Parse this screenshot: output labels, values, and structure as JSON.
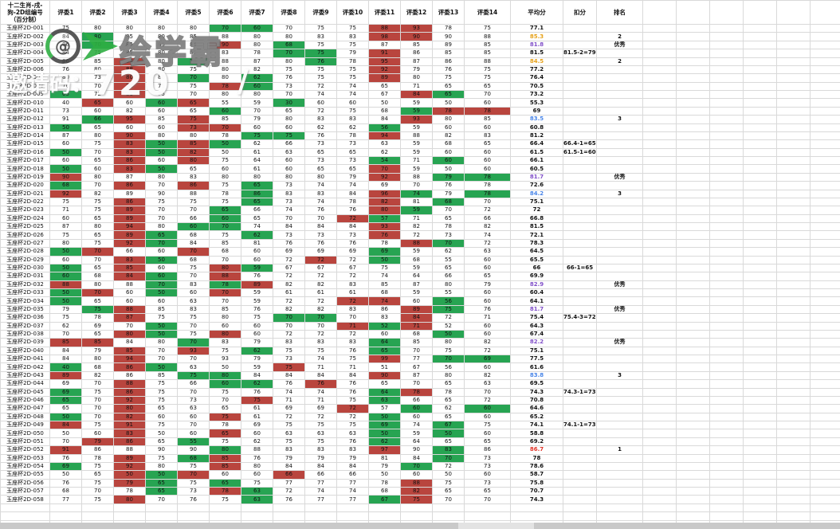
{
  "header": {
    "title_lines": [
      "十二生肖-戌-",
      "狗-2D组编号",
      "（百分制）"
    ],
    "judges": [
      "评委1",
      "评委2",
      "评委3",
      "评委4",
      "评委5",
      "评委6",
      "评委7",
      "评委8",
      "评委9",
      "评委10",
      "评委11",
      "评委12",
      "评委13",
      "评委14"
    ],
    "avg_label": "平均分",
    "deduct_label": "扣分",
    "rank_label": "排名"
  },
  "colors": {
    "highlight_green": "#27a452",
    "highlight_red": "#b9453e",
    "deduction_text": "#e03226",
    "avg_rank1": "#e03226",
    "avg_rank2": "#e6a118",
    "avg_rank3": "#4a86e8",
    "avg_excellent": "#8150c9",
    "gridline": "#d9d9d9"
  },
  "watermark": {
    "logo": "play-icon",
    "logo_glyph": "@",
    "brand_text": "绘学霸",
    "invite_label": "邀请码：",
    "invite_code": "720",
    "slash": "/"
  },
  "rows": [
    [
      "玉座杯2D-001",
      [
        "75",
        "80",
        "80",
        "80",
        "80",
        "70g",
        "60g",
        "70",
        "75",
        "75",
        "88r",
        "93r",
        "78",
        "75"
      ],
      "77.1",
      "",
      "",
      ""
    ],
    [
      "玉座杯2D-002",
      [
        "84",
        "80g",
        "85",
        "80",
        "85",
        "88",
        "80",
        "80",
        "83",
        "83",
        "98r",
        "90r",
        "90",
        "88"
      ],
      "85.3",
      "orange",
      "",
      "2"
    ],
    [
      "玉座杯2D-003",
      [
        "86",
        "70g",
        "85",
        "85",
        "85",
        "90r",
        "80",
        "68g",
        "75",
        "75",
        "87",
        "85",
        "89",
        "85"
      ],
      "81.8",
      "purple",
      "",
      "优秀"
    ],
    [
      "玉座杯2D-004",
      [
        "84",
        "75",
        "85",
        "80",
        "85",
        "83",
        "78",
        "70g",
        "75g",
        "79",
        "91r",
        "86",
        "85",
        "85"
      ],
      "81.5",
      "",
      "81.5-2=79.5",
      ""
    ],
    [
      "玉座杯2D-005",
      [
        "86",
        "85",
        "94r",
        "80",
        "75g",
        "88",
        "87",
        "80",
        "76g",
        "78",
        "95r",
        "87",
        "86",
        "88"
      ],
      "84.5",
      "orange",
      "",
      "2"
    ],
    [
      "玉座杯2D-006",
      [
        "76",
        "80",
        "88r",
        "80",
        "75",
        "80",
        "82",
        "75",
        "75",
        "75",
        "92r",
        "79",
        "76",
        "75"
      ],
      "77.2",
      "",
      "",
      ""
    ],
    [
      "玉座杯2D-007",
      [
        "80",
        "73",
        "80r",
        "80",
        "70g",
        "80",
        "62g",
        "76",
        "75",
        "75",
        "89r",
        "80",
        "75",
        "75"
      ],
      "76.4",
      "",
      "",
      ""
    ],
    [
      "玉座杯2D-008",
      [
        "70",
        "70",
        "74r",
        "75",
        "75",
        "78r",
        "60g",
        "73",
        "72",
        "74",
        "65",
        "71",
        "65",
        "65"
      ],
      "70.5",
      "",
      "",
      ""
    ],
    [
      "玉座杯2D-009",
      [
        "65g",
        "72",
        "81r",
        "75",
        "70",
        "80",
        "80",
        "70",
        "74",
        "74",
        "67",
        "84r",
        "65g",
        "70"
      ],
      "73.2",
      "",
      "",
      ""
    ],
    [
      "玉座杯2D-010",
      [
        "40",
        "65r",
        "60",
        "60g",
        "65r",
        "55",
        "59",
        "30g",
        "60",
        "60",
        "50",
        "59",
        "50",
        "60"
      ],
      "55.3",
      "",
      "",
      ""
    ],
    [
      "玉座杯2D-011",
      [
        "73",
        "60",
        "82",
        "60",
        "65",
        "60g",
        "70",
        "65",
        "72",
        "75",
        "68",
        "59g",
        "78r",
        "78r"
      ],
      "69",
      "",
      "",
      ""
    ],
    [
      "玉座杯2D-012",
      [
        "91",
        "66g",
        "95r",
        "85",
        "75r",
        "85",
        "79",
        "80",
        "83",
        "83",
        "84",
        "93r",
        "80",
        "85"
      ],
      "83.5",
      "blue",
      "",
      "3"
    ],
    [
      "玉座杯2D-013",
      [
        "50g",
        "65",
        "60",
        "60",
        "73r",
        "70r",
        "60",
        "60",
        "62",
        "62",
        "56g",
        "59",
        "60",
        "60"
      ],
      "60.8",
      "",
      "",
      ""
    ],
    [
      "玉座杯2D-014",
      [
        "87",
        "80",
        "90r",
        "80",
        "80",
        "78",
        "75g",
        "75g",
        "76",
        "78",
        "94r",
        "88",
        "82",
        "83"
      ],
      "81.2",
      "",
      "",
      ""
    ],
    [
      "玉座杯2D-015",
      [
        "60",
        "75",
        "83r",
        "50g",
        "85r",
        "50g",
        "62",
        "66",
        "73",
        "73",
        "63",
        "59",
        "68",
        "65"
      ],
      "66.4",
      "",
      "66.4-1=65.4",
      ""
    ],
    [
      "玉座杯2D-016",
      [
        "50g",
        "70",
        "83r",
        "50g",
        "82r",
        "50",
        "61",
        "63",
        "65",
        "65",
        "62",
        "59",
        "60",
        "60"
      ],
      "61.5",
      "",
      "61.5-1=60.5",
      ""
    ],
    [
      "玉座杯2D-017",
      [
        "60",
        "65",
        "86r",
        "60",
        "80r",
        "75",
        "64",
        "60",
        "73",
        "73",
        "54g",
        "71",
        "60g",
        "60"
      ],
      "66.1",
      "",
      "",
      ""
    ],
    [
      "玉座杯2D-018",
      [
        "50g",
        "60",
        "83r",
        "50g",
        "65",
        "60",
        "61",
        "60",
        "65",
        "65",
        "70r",
        "59",
        "50",
        "60"
      ],
      "60.5",
      "",
      "",
      ""
    ],
    [
      "玉座杯2D-019",
      [
        "90r",
        "80",
        "87",
        "80",
        "83",
        "80",
        "80",
        "80",
        "80",
        "79",
        "92r",
        "88",
        "79g",
        "78g"
      ],
      "81.7",
      "purple",
      "",
      "优秀"
    ],
    [
      "玉座杯2D-020",
      [
        "68g",
        "70",
        "86r",
        "70",
        "86r",
        "75",
        "65g",
        "73",
        "74",
        "74",
        "69",
        "70",
        "76",
        "78"
      ],
      "72.6",
      "",
      "",
      ""
    ],
    [
      "玉座杯2D-021",
      [
        "92r",
        "82",
        "89",
        "90",
        "88",
        "78",
        "86g",
        "83",
        "83",
        "84",
        "96r",
        "74g",
        "79",
        "78g"
      ],
      "84.2",
      "blue",
      "",
      "3"
    ],
    [
      "玉座杯2D-022",
      [
        "75",
        "75",
        "86r",
        "75",
        "75",
        "75",
        "65g",
        "73",
        "74",
        "78",
        "82r",
        "81",
        "68g",
        "70"
      ],
      "75.1",
      "",
      "",
      ""
    ],
    [
      "玉座杯2D-023",
      [
        "71",
        "75",
        "89r",
        "70",
        "70",
        "65g",
        "66",
        "74",
        "76",
        "76",
        "80r",
        "59g",
        "70",
        "72"
      ],
      "72",
      "",
      "",
      ""
    ],
    [
      "玉座杯2D-024",
      [
        "60",
        "65",
        "89r",
        "70",
        "66",
        "60g",
        "65",
        "70",
        "70",
        "72r",
        "57g",
        "71",
        "65",
        "66"
      ],
      "66.8",
      "",
      "",
      ""
    ],
    [
      "玉座杯2D-025",
      [
        "87",
        "80",
        "94r",
        "80",
        "60g",
        "70g",
        "74",
        "84",
        "84",
        "84",
        "93r",
        "82",
        "78",
        "82"
      ],
      "81.5",
      "",
      "",
      ""
    ],
    [
      "玉座杯2D-026",
      [
        "75",
        "65",
        "89r",
        "65g",
        "68",
        "75",
        "62g",
        "73",
        "73",
        "73",
        "76r",
        "72",
        "73",
        "74"
      ],
      "72.1",
      "",
      "",
      ""
    ],
    [
      "玉座杯2D-027",
      [
        "80",
        "75",
        "92r",
        "70g",
        "84",
        "85",
        "81",
        "76",
        "76",
        "76",
        "78",
        "88r",
        "70g",
        "72"
      ],
      "78.3",
      "",
      "",
      ""
    ],
    [
      "玉座杯2D-028",
      [
        "50g",
        "70r",
        "66",
        "60",
        "70r",
        "68",
        "60",
        "69",
        "69",
        "69",
        "69g",
        "59",
        "62",
        "63"
      ],
      "64.5",
      "",
      "",
      ""
    ],
    [
      "玉座杯2D-029",
      [
        "60",
        "70",
        "83r",
        "50g",
        "68",
        "70",
        "60",
        "72",
        "72r",
        "72",
        "50g",
        "68",
        "55",
        "60"
      ],
      "65.5",
      "",
      "",
      ""
    ],
    [
      "玉座杯2D-030",
      [
        "50g",
        "65",
        "85r",
        "60",
        "75",
        "80r",
        "59g",
        "67",
        "67",
        "67",
        "75",
        "59",
        "65",
        "60"
      ],
      "66",
      "",
      "66-1=65",
      ""
    ],
    [
      "玉座杯2D-031",
      [
        "60g",
        "68",
        "84r",
        "60g",
        "70",
        "88r",
        "76",
        "72",
        "72",
        "72",
        "74",
        "64",
        "66",
        "65"
      ],
      "69.9",
      "",
      "",
      ""
    ],
    [
      "玉座杯2D-032",
      [
        "88r",
        "80",
        "88",
        "70g",
        "83",
        "78g",
        "89r",
        "82",
        "82",
        "83",
        "85",
        "87",
        "80",
        "79"
      ],
      "82.9",
      "purple",
      "",
      "优秀"
    ],
    [
      "玉座杯2D-033",
      [
        "50g",
        "70r",
        "60",
        "50g",
        "60",
        "70r",
        "59",
        "61",
        "61",
        "61",
        "68",
        "59",
        "55",
        "60"
      ],
      "60.4",
      "",
      "",
      ""
    ],
    [
      "玉座杯2D-034",
      [
        "50g",
        "65",
        "60",
        "60",
        "63",
        "70",
        "59",
        "72",
        "72",
        "72r",
        "74r",
        "60",
        "56g",
        "60"
      ],
      "64.1",
      "",
      "",
      ""
    ],
    [
      "玉座杯2D-035",
      [
        "79",
        "75g",
        "88r",
        "85",
        "83",
        "85",
        "76",
        "82",
        "82",
        "83",
        "86",
        "89r",
        "75g",
        "76"
      ],
      "81.7",
      "purple",
      "",
      "优秀"
    ],
    [
      "玉座杯2D-036",
      [
        "75",
        "78",
        "87r",
        "75",
        "75",
        "80",
        "75",
        "70g",
        "70g",
        "70",
        "83",
        "84r",
        "72",
        "71"
      ],
      "75.4",
      "",
      "75.4-3=72.4",
      ""
    ],
    [
      "玉座杯2D-037",
      [
        "62",
        "69",
        "70",
        "50g",
        "70",
        "60",
        "60",
        "70",
        "70",
        "71r",
        "52g",
        "71r",
        "52",
        "60"
      ],
      "64.3",
      "",
      "",
      ""
    ],
    [
      "玉座杯2D-038",
      [
        "70",
        "65",
        "80r",
        "50g",
        "75",
        "80r",
        "60",
        "72",
        "72",
        "72",
        "60",
        "68",
        "50g",
        "60"
      ],
      "67.4",
      "",
      "",
      ""
    ],
    [
      "玉座杯2D-039",
      [
        "85r",
        "85r",
        "84",
        "80",
        "70g",
        "83",
        "79",
        "83",
        "83",
        "83",
        "64g",
        "85",
        "80",
        "82"
      ],
      "82.2",
      "purple",
      "",
      "优秀"
    ],
    [
      "玉座杯2D-040",
      [
        "84",
        "79",
        "85r",
        "70",
        "93r",
        "75",
        "62g",
        "75",
        "75",
        "76",
        "65g",
        "70",
        "75",
        "72"
      ],
      "75.1",
      "",
      "",
      ""
    ],
    [
      "玉座杯2D-041",
      [
        "84",
        "80",
        "94r",
        "70",
        "70",
        "93",
        "79",
        "73",
        "74",
        "75",
        "99r",
        "77",
        "70g",
        "69g"
      ],
      "77.5",
      "",
      "",
      ""
    ],
    [
      "玉座杯2D-042",
      [
        "40g",
        "68",
        "86r",
        "50g",
        "63",
        "50",
        "59",
        "75r",
        "71",
        "71",
        "51",
        "67",
        "56",
        "60"
      ],
      "61.6",
      "",
      "",
      ""
    ],
    [
      "玉座杯2D-043",
      [
        "89r",
        "82",
        "86",
        "85",
        "75g",
        "80g",
        "84",
        "84",
        "84",
        "84",
        "90r",
        "87",
        "80",
        "82"
      ],
      "83.8",
      "blue",
      "",
      "3"
    ],
    [
      "玉座杯2D-044",
      [
        "69",
        "70",
        "88r",
        "75",
        "66",
        "60g",
        "62g",
        "76",
        "76r",
        "76",
        "65",
        "70",
        "65",
        "63"
      ],
      "69.5",
      "",
      "",
      ""
    ],
    [
      "玉座杯2D-045",
      [
        "69g",
        "75",
        "86r",
        "75",
        "70",
        "75",
        "76",
        "74",
        "74",
        "76",
        "64g",
        "78r",
        "78",
        "70"
      ],
      "74.3",
      "",
      "74.3-1=73.3",
      ""
    ],
    [
      "玉座杯2D-046",
      [
        "65g",
        "70",
        "92r",
        "75",
        "73",
        "70",
        "75r",
        "71",
        "71",
        "75",
        "63g",
        "66",
        "65",
        "72"
      ],
      "70.8",
      "",
      "",
      ""
    ],
    [
      "玉座杯2D-047",
      [
        "65",
        "70",
        "80r",
        "65",
        "63",
        "65",
        "61",
        "69",
        "69",
        "72r",
        "57",
        "60g",
        "62",
        "60g"
      ],
      "64.6",
      "",
      "",
      ""
    ],
    [
      "玉座杯2D-048",
      [
        "50g",
        "70",
        "82r",
        "60",
        "60",
        "75r",
        "61",
        "72",
        "72",
        "72",
        "50g",
        "60",
        "65",
        "60"
      ],
      "65.2",
      "",
      "",
      ""
    ],
    [
      "玉座杯2D-049",
      [
        "84r",
        "75",
        "91r",
        "75",
        "70",
        "78",
        "69",
        "75",
        "75",
        "75",
        "69g",
        "74",
        "67g",
        "75"
      ],
      "74.1",
      "",
      "74.1-1=73.1",
      ""
    ],
    [
      "玉座杯2D-050",
      [
        "50",
        "60",
        "83r",
        "50",
        "60",
        "65r",
        "60",
        "63",
        "63",
        "63",
        "50g",
        "59",
        "50g",
        "60"
      ],
      "58.8",
      "",
      "",
      ""
    ],
    [
      "玉座杯2D-051",
      [
        "70",
        "79r",
        "86r",
        "65",
        "55g",
        "75",
        "62",
        "75",
        "75",
        "76",
        "62g",
        "64",
        "65",
        "65"
      ],
      "69.2",
      "",
      "",
      ""
    ],
    [
      "玉座杯2D-052",
      [
        "91r",
        "86",
        "88",
        "90",
        "90",
        "80g",
        "88",
        "83",
        "83",
        "83",
        "97r",
        "90",
        "83g",
        "86"
      ],
      "86.7",
      "red",
      "",
      "1"
    ],
    [
      "玉座杯2D-053",
      [
        "76",
        "78",
        "89r",
        "75",
        "68g",
        "85r",
        "76",
        "79",
        "79",
        "79",
        "81",
        "84",
        "70g",
        "73"
      ],
      "78",
      "",
      "",
      ""
    ],
    [
      "玉座杯2D-054",
      [
        "69g",
        "75",
        "92r",
        "80",
        "75",
        "85r",
        "80",
        "84",
        "84",
        "84",
        "79",
        "70g",
        "72",
        "73"
      ],
      "78.6",
      "",
      "",
      ""
    ],
    [
      "玉座杯2D-055",
      [
        "50",
        "65",
        "50r",
        "50g",
        "70r",
        "60",
        "60",
        "66r",
        "66",
        "66",
        "50",
        "60",
        "50",
        "60"
      ],
      "58.7",
      "",
      "",
      ""
    ],
    [
      "玉座杯2D-056",
      [
        "76",
        "75",
        "79r",
        "65g",
        "75",
        "65g",
        "75",
        "77",
        "77",
        "77",
        "78",
        "88r",
        "75",
        "73"
      ],
      "75.8",
      "",
      "",
      ""
    ],
    [
      "玉座杯2D-057",
      [
        "68",
        "70",
        "78",
        "65g",
        "73",
        "78r",
        "63g",
        "72",
        "74",
        "74",
        "68",
        "82r",
        "65",
        "65"
      ],
      "70.7",
      "",
      "",
      ""
    ],
    [
      "玉座杯2D-058",
      [
        "77",
        "75",
        "80r",
        "70",
        "76",
        "75",
        "63g",
        "76",
        "77",
        "77",
        "67g",
        "75r",
        "70",
        "70"
      ],
      "74.3",
      "",
      "",
      ""
    ]
  ],
  "empty_trailing_rows": 3,
  "empty_trailing_cols": 6
}
